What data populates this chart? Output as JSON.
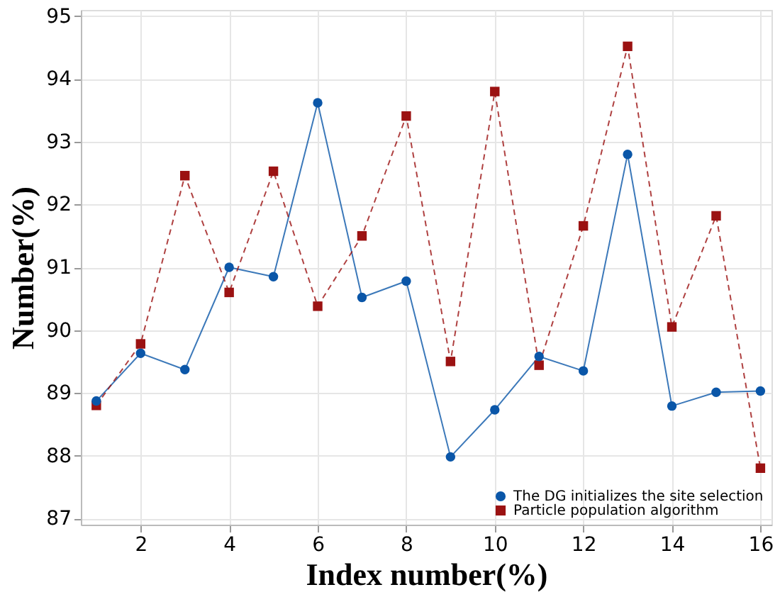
{
  "chart_data": {
    "type": "line",
    "xlabel": "Index number(%)",
    "ylabel": "Number(%)",
    "x": [
      1,
      2,
      3,
      4,
      5,
      6,
      7,
      8,
      9,
      10,
      11,
      12,
      13,
      14,
      15,
      16
    ],
    "series": [
      {
        "name": "The DG initializes the site selection",
        "color": "#0a56a8",
        "marker": "circle",
        "line_style": "solid",
        "values": [
          88.87,
          89.63,
          89.37,
          91.0,
          90.85,
          93.62,
          90.52,
          90.78,
          87.98,
          88.73,
          89.58,
          89.35,
          92.8,
          88.79,
          89.01,
          89.03
        ]
      },
      {
        "name": "Particle population algorithm",
        "color": "#9b1212",
        "marker": "square",
        "line_style": "dashed",
        "values": [
          88.8,
          89.78,
          92.46,
          90.6,
          92.53,
          90.38,
          91.5,
          93.41,
          89.5,
          93.8,
          89.44,
          91.66,
          94.52,
          90.05,
          91.82,
          87.8
        ]
      }
    ],
    "xlim": [
      0.65,
      16.25
    ],
    "xticks": [
      2,
      4,
      6,
      8,
      10,
      12,
      14,
      16
    ],
    "ylim": [
      86.9,
      95.1
    ],
    "yticks": [
      87,
      88,
      89,
      90,
      91,
      92,
      93,
      94,
      95
    ],
    "grid": true,
    "legend": "bottom right"
  }
}
